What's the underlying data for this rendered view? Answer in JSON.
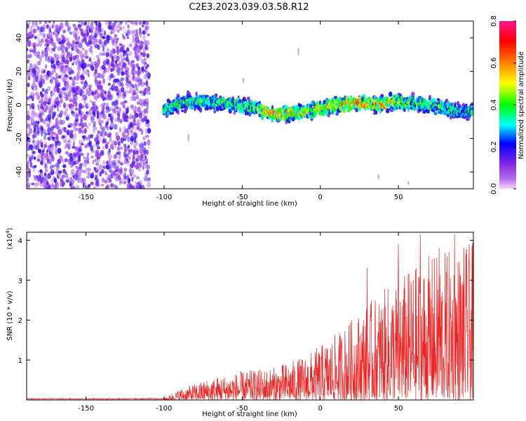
{
  "title": "C2E3.2023.039.03.58.R12",
  "chart_data": [
    {
      "type": "heatmap",
      "xlabel": "Height of straight line (km)",
      "ylabel": "Frequency (Hz)",
      "xlim": [
        -188,
        98
      ],
      "ylim": [
        -50,
        50
      ],
      "x_ticks": [
        -150,
        -100,
        -50,
        0,
        50
      ],
      "y_ticks": [
        -40,
        -20,
        0,
        20,
        40
      ],
      "colorbar": {
        "label": "Normalized spectral amplitude",
        "range": [
          0,
          0.8
        ],
        "ticks": [
          0.0,
          0.2,
          0.4,
          0.6,
          0.8
        ],
        "colors": [
          "#f2d4f7",
          "#8a2be2",
          "#0000ff",
          "#00ffff",
          "#00ff00",
          "#ffff00",
          "#ff8000",
          "#ff0000",
          "#ff1493"
        ]
      },
      "noise_region": {
        "x_range": [
          -188,
          -110
        ],
        "amplitude": 0.15
      },
      "ridge": [
        {
          "x": -100,
          "freq": -3,
          "amp": 0.35
        },
        {
          "x": -85,
          "freq": 2,
          "amp": 0.4
        },
        {
          "x": -60,
          "freq": 1,
          "amp": 0.38
        },
        {
          "x": -40,
          "freq": -2,
          "amp": 0.45
        },
        {
          "x": -30,
          "freq": -6,
          "amp": 0.6
        },
        {
          "x": -10,
          "freq": -4,
          "amp": 0.5
        },
        {
          "x": 0,
          "freq": -2,
          "amp": 0.5
        },
        {
          "x": 20,
          "freq": 1,
          "amp": 0.6
        },
        {
          "x": 40,
          "freq": 0,
          "amp": 0.6
        },
        {
          "x": 50,
          "freq": 2,
          "amp": 0.45
        },
        {
          "x": 60,
          "freq": 1,
          "amp": 0.4
        },
        {
          "x": 75,
          "freq": -1,
          "amp": 0.4
        },
        {
          "x": 92,
          "freq": -4,
          "amp": 0.35
        }
      ]
    },
    {
      "type": "line",
      "xlabel": "Height of straight line (km)",
      "ylabel": "SNR (10 * v/v)",
      "yscale_label": "(x10",
      "yscale_exp": "4",
      "yscale_close": ")",
      "xlim": [
        -188,
        98
      ],
      "ylim": [
        0,
        42000
      ],
      "x_ticks": [
        -150,
        -100,
        -50,
        0,
        50
      ],
      "y_ticks": [
        1,
        2,
        3,
        4
      ],
      "color": "#ee2222",
      "envelope": [
        {
          "x": -188,
          "y": 200
        },
        {
          "x": -100,
          "y": 400
        },
        {
          "x": -90,
          "y": 2500
        },
        {
          "x": -70,
          "y": 5000
        },
        {
          "x": -50,
          "y": 6500
        },
        {
          "x": -30,
          "y": 7500
        },
        {
          "x": -10,
          "y": 10000
        },
        {
          "x": 10,
          "y": 15000
        },
        {
          "x": 30,
          "y": 22000
        },
        {
          "x": 50,
          "y": 28000
        },
        {
          "x": 70,
          "y": 33000
        },
        {
          "x": 90,
          "y": 35000
        },
        {
          "x": 98,
          "y": 36000
        }
      ],
      "peaks": [
        {
          "x": 30,
          "y": 33000
        },
        {
          "x": 50,
          "y": 39000
        },
        {
          "x": 64,
          "y": 41500
        },
        {
          "x": 76,
          "y": 38000
        },
        {
          "x": 86,
          "y": 41500
        },
        {
          "x": 95,
          "y": 33000
        }
      ]
    }
  ]
}
